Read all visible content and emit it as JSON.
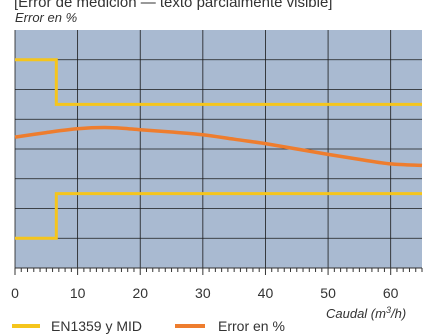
{
  "top_caption_fragment": "[Error de medición — texto parcialmente visible]",
  "chart_data": {
    "type": "line",
    "title": "",
    "ylabel": "Error en %",
    "xlabel": "Caudal (m³/h)",
    "xlabel_parts": {
      "main": "Caudal (m",
      "sup": "3",
      "tail": "/h)"
    },
    "xlim": [
      0,
      65
    ],
    "x_major_ticks": [
      0,
      10,
      20,
      30,
      40,
      50,
      60
    ],
    "x_minor_step": 1,
    "ylim": [
      -4,
      4
    ],
    "y_gridlines": [
      -3,
      -2,
      -1,
      0,
      1,
      2,
      3
    ],
    "grid": true,
    "plot_background": "#A9BAD1",
    "series": [
      {
        "name": "EN1359 y MID",
        "color": "#F5C51C",
        "step_x": 6.6,
        "upper": [
          [
            0,
            3
          ],
          [
            6.6,
            3
          ],
          [
            6.6,
            1.5
          ],
          [
            65,
            1.5
          ]
        ],
        "lower": [
          [
            0,
            -3
          ],
          [
            6.6,
            -3
          ],
          [
            6.6,
            -1.5
          ],
          [
            65,
            -1.5
          ]
        ]
      },
      {
        "name": "Error en %",
        "color": "#EE7D2E",
        "points": [
          [
            0,
            0.4
          ],
          [
            5,
            0.55
          ],
          [
            10,
            0.68
          ],
          [
            15,
            0.72
          ],
          [
            20,
            0.65
          ],
          [
            25,
            0.57
          ],
          [
            30,
            0.48
          ],
          [
            35,
            0.33
          ],
          [
            40,
            0.18
          ],
          [
            45,
            0.0
          ],
          [
            50,
            -0.18
          ],
          [
            55,
            -0.35
          ],
          [
            60,
            -0.5
          ],
          [
            65,
            -0.55
          ]
        ]
      }
    ],
    "legend": {
      "placement": "bottom",
      "entries": [
        "EN1359 y MID",
        "Error en %"
      ]
    }
  }
}
